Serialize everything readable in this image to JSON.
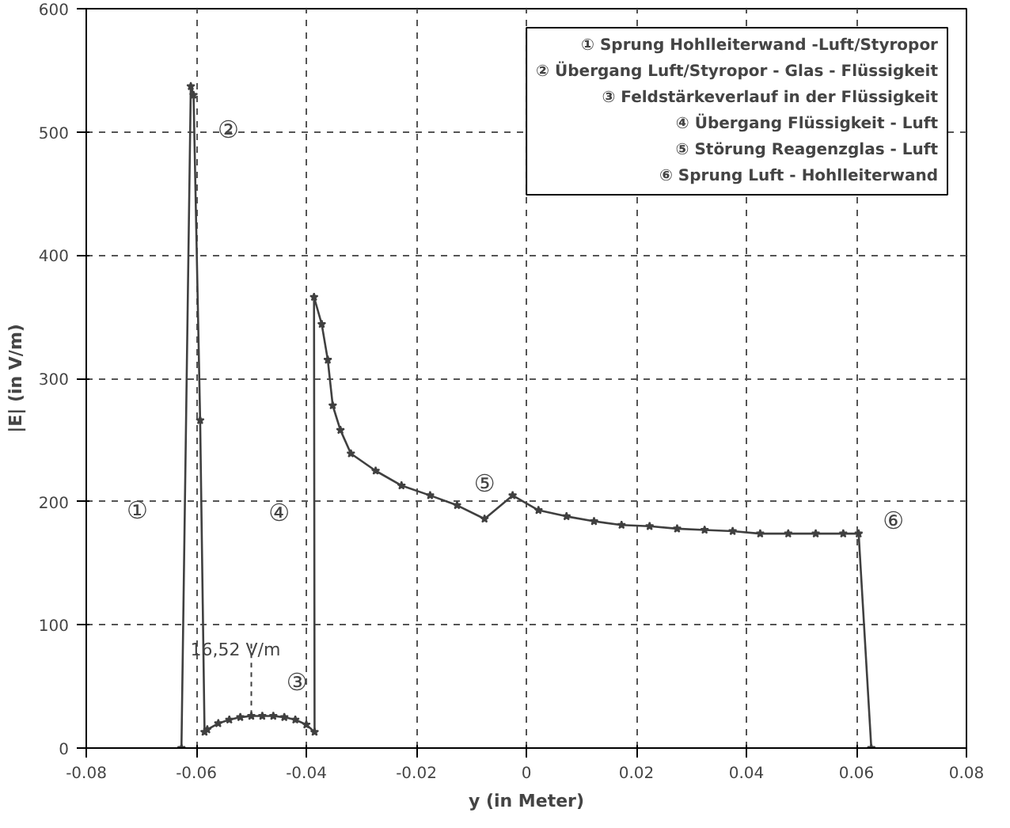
{
  "chart_data": {
    "type": "line",
    "xlabel": "y (in Meter)",
    "ylabel": "|E| (in V/m)",
    "xlim": [
      -0.08,
      0.08
    ],
    "ylim": [
      0,
      600
    ],
    "xticks": [
      -0.08,
      -0.06,
      -0.04,
      -0.02,
      0,
      0.02,
      0.04,
      0.06,
      0.08
    ],
    "yticks": [
      0,
      100,
      200,
      300,
      400,
      500,
      600
    ],
    "grid": true,
    "marker": "star",
    "line_style": "solid",
    "series": [
      {
        "color": "#404040",
        "x": [
          -0.0627,
          -0.061,
          -0.0605,
          -0.0593,
          -0.0585,
          -0.058,
          -0.056,
          -0.054,
          -0.052,
          -0.05,
          -0.048,
          -0.046,
          -0.044,
          -0.042,
          -0.04,
          -0.0385,
          -0.0386,
          -0.0372,
          -0.0361,
          -0.0352,
          -0.0338,
          -0.0319,
          -0.0274,
          -0.0227,
          -0.0175,
          -0.0126,
          -0.0076,
          -0.0025,
          0.0022,
          0.0073,
          0.0123,
          0.0173,
          0.0224,
          0.0274,
          0.0324,
          0.0375,
          0.0425,
          0.0476,
          0.0526,
          0.0576,
          0.0604,
          0.0627
        ],
        "values": [
          0,
          537,
          530,
          266,
          13,
          15,
          20,
          23,
          25,
          26,
          26,
          26,
          25,
          23,
          19,
          13,
          366,
          344,
          315,
          278,
          258,
          239,
          225,
          213,
          205,
          197,
          186,
          205,
          193,
          188,
          184,
          181,
          180,
          178,
          177,
          176,
          174,
          174,
          174,
          174,
          174,
          0
        ]
      }
    ],
    "annotations": [
      {
        "text": "①",
        "x": -0.0621,
        "y": 193
      },
      {
        "text": "②",
        "x": -0.0605,
        "y": 530
      },
      {
        "text": "③",
        "x": -0.044,
        "y": 25
      },
      {
        "text": "④",
        "x": -0.0386,
        "y": 191
      },
      {
        "text": "⑤",
        "x": -0.0076,
        "y": 186
      },
      {
        "text": "⑥",
        "x": 0.0604,
        "y": 174
      },
      {
        "text": "16,52 V/m",
        "x": -0.05,
        "y": 26
      },
      "① Sprung Hohlleiterwand -Luft/Styropor",
      "② Übergang Luft/Styropor - Glas - Flüssigkeit",
      "③ Feldstärkeverlauf in der Flüssigkeit",
      "④ Übergang Flüssigkeit - Luft",
      "⑤ Störung Reagenzglas - Luft",
      "⑥ Sprung Luft - Hohlleiterwand"
    ]
  }
}
